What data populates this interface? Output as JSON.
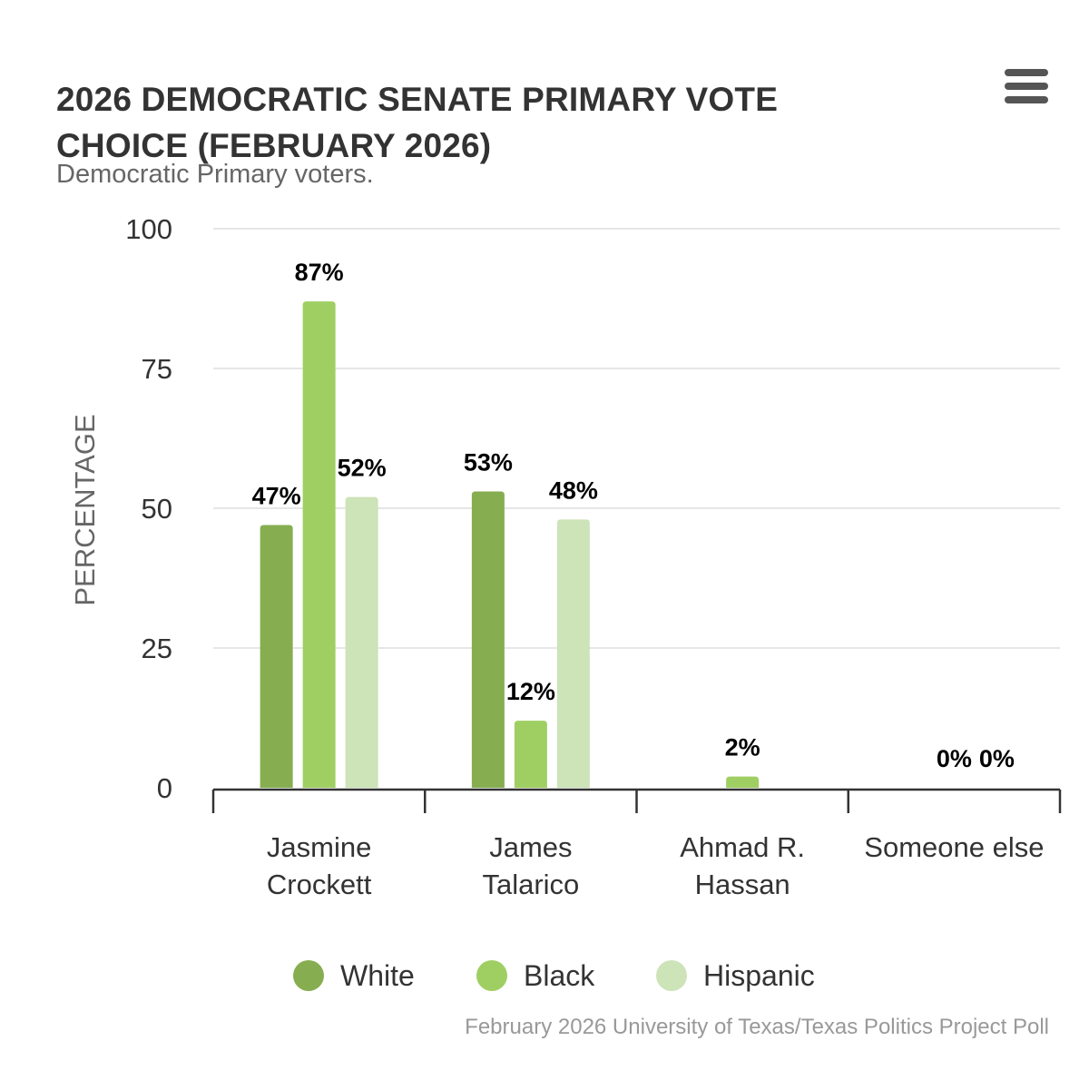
{
  "header": {
    "menu_icon": "hamburger-menu-icon"
  },
  "chart_data": {
    "type": "bar",
    "title": "2026 DEMOCRATIC SENATE PRIMARY VOTE CHOICE (FEBRUARY 2026)",
    "subtitle": "Democratic Primary voters.",
    "ylabel": "PERCENTAGE",
    "xlabel": "",
    "ylim": [
      0,
      100
    ],
    "yticks": [
      0,
      25,
      50,
      75,
      100
    ],
    "grid": true,
    "categories": [
      [
        "Jasmine",
        "Crockett"
      ],
      [
        "James",
        "Talarico"
      ],
      [
        "Ahmad R.",
        "Hassan"
      ],
      [
        "Someone else"
      ]
    ],
    "series": [
      {
        "name": "White",
        "color": "#86ae50",
        "values": [
          47,
          53,
          null,
          null
        ],
        "labels": [
          "47%",
          "53%",
          "",
          ""
        ]
      },
      {
        "name": "Black",
        "color": "#9fcf62",
        "values": [
          87,
          12,
          2,
          0
        ],
        "labels": [
          "87%",
          "12%",
          "2%",
          "0%"
        ]
      },
      {
        "name": "Hispanic",
        "color": "#cde3b8",
        "values": [
          52,
          48,
          null,
          0
        ],
        "labels": [
          "52%",
          "48%",
          "",
          "0%"
        ]
      }
    ],
    "legend_position": "bottom-center",
    "source": "February 2026 University of Texas/Texas Politics Project Poll"
  }
}
